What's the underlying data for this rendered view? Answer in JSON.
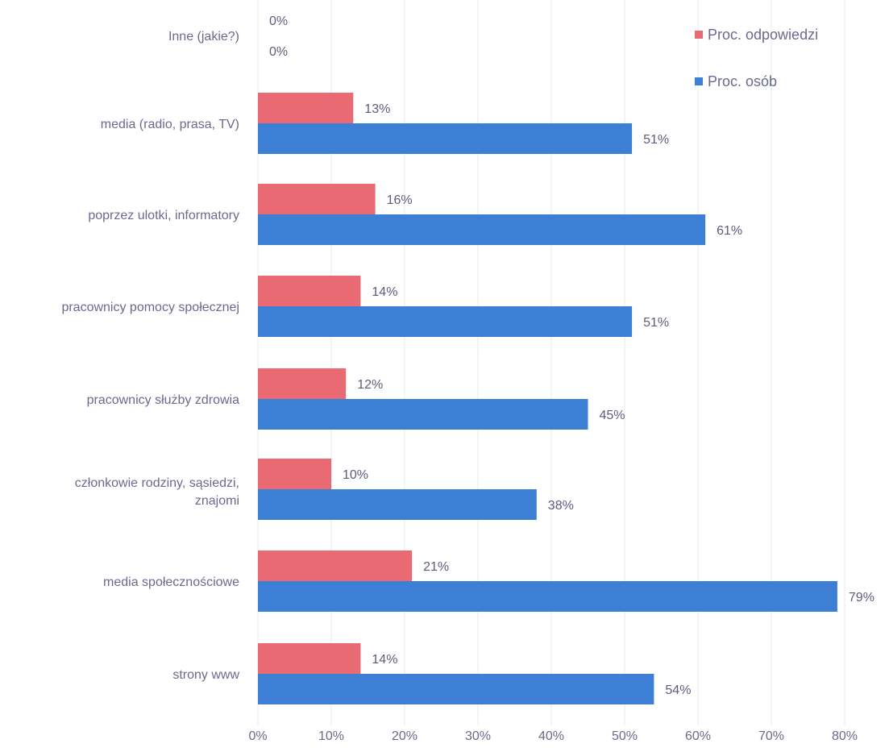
{
  "chart_data": {
    "type": "bar",
    "orientation": "horizontal",
    "categories": [
      "Inne (jakie?)",
      "media (radio, prasa, TV)",
      "poprzez ulotki, informatory",
      "pracownicy pomocy społecznej",
      "pracownicy służby zdrowia",
      "członkowie rodziny, sąsiedzi, znajomi",
      "media społecznościowe",
      "strony www"
    ],
    "series": [
      {
        "name": "Proc. odpowiedzi",
        "color": "#e96a72",
        "values": [
          0,
          13,
          16,
          14,
          12,
          10,
          21,
          14
        ],
        "labels": [
          "0%",
          "13%",
          "16%",
          "14%",
          "12%",
          "10%",
          "21%",
          "14%"
        ]
      },
      {
        "name": "Proc. osób",
        "color": "#3d7fd4",
        "values": [
          0,
          51,
          61,
          51,
          45,
          38,
          79,
          54
        ],
        "labels": [
          "0%",
          "51%",
          "61%",
          "51%",
          "45%",
          "38%",
          "79%",
          "54%"
        ]
      }
    ],
    "x_ticks": [
      "0%",
      "10%",
      "20%",
      "30%",
      "40%",
      "50%",
      "60%",
      "70%",
      "80%"
    ],
    "xlim": [
      0,
      80
    ],
    "grid": true,
    "legend_position": "top-right"
  }
}
